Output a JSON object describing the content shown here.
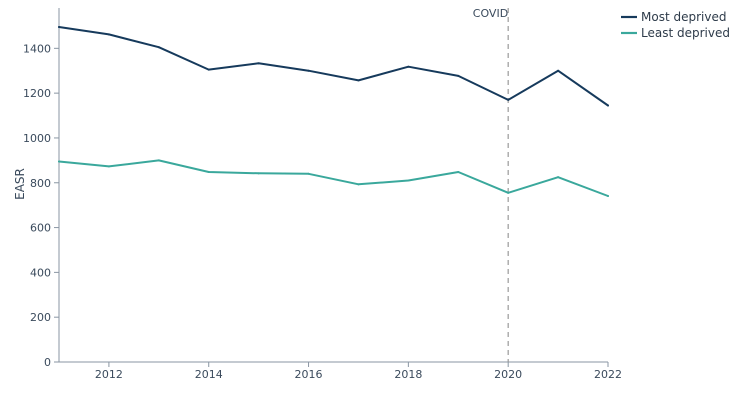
{
  "chart_data": {
    "type": "line",
    "title": "",
    "xlabel": "",
    "ylabel": "EASR",
    "xlim": [
      2011,
      2022
    ],
    "ylim": [
      0,
      1580
    ],
    "xticks": [
      "2012",
      "2014",
      "2016",
      "2018",
      "2020",
      "2022"
    ],
    "yticks": [
      "0",
      "200",
      "400",
      "600",
      "800",
      "1000",
      "1200",
      "1400"
    ],
    "x": [
      2011,
      2012,
      2013,
      2014,
      2015,
      2016,
      2017,
      2018,
      2019,
      2020,
      2021,
      2022
    ],
    "series": [
      {
        "name": "Most deprived",
        "color": "#163a5c",
        "values": [
          1495,
          1462,
          1405,
          1305,
          1333,
          1300,
          1257,
          1318,
          1277,
          1170,
          1300,
          1145
        ]
      },
      {
        "name": "Least deprived",
        "color": "#3aa89c",
        "values": [
          895,
          873,
          900,
          848,
          842,
          840,
          793,
          810,
          848,
          755,
          825,
          741
        ]
      }
    ],
    "annotations": [
      {
        "label": "COVID",
        "x": 2020,
        "style": "dashed-vertical-line"
      }
    ],
    "grid": false,
    "legend_position": "top-right"
  }
}
